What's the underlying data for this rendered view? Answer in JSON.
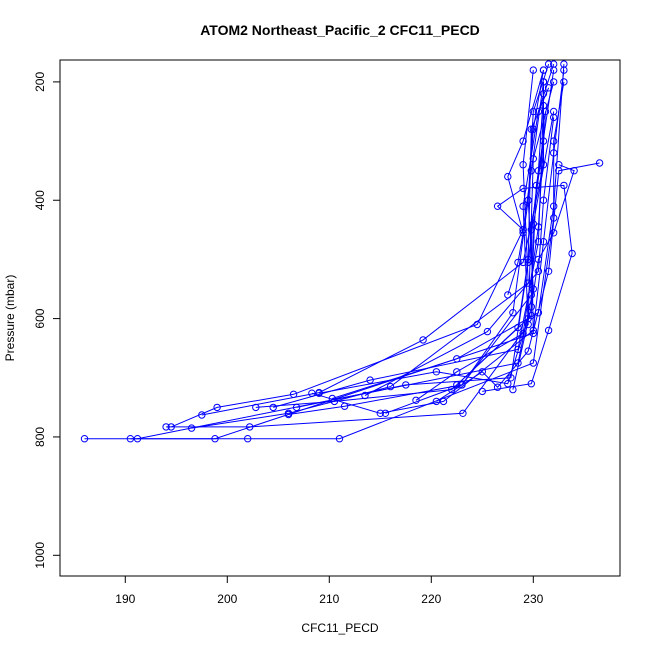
{
  "chart_data": {
    "type": "line",
    "title": "ATOM2 Northeast_Pacific_2 CFC11_PECD",
    "xlabel": "CFC11_PECD",
    "ylabel": "Pressure (mbar)",
    "xlim": [
      183.6,
      238.5
    ],
    "ylim": [
      1035,
      163
    ],
    "y_reversed": true,
    "x_ticks": [
      190,
      200,
      210,
      220,
      230
    ],
    "y_ticks": [
      200,
      400,
      600,
      800,
      1000
    ],
    "grid": false,
    "series_color": "#0000ff",
    "marker": "open-circle",
    "series": [
      {
        "values": [
          [
            186,
            803
          ],
          [
            202,
            803
          ],
          [
            211,
            803
          ],
          [
            230,
            675
          ],
          [
            232,
            430
          ],
          [
            232,
            300
          ],
          [
            233,
            200
          ]
        ]
      },
      {
        "values": [
          [
            190.5,
            803
          ],
          [
            198.8,
            803
          ],
          [
            230,
            625
          ],
          [
            229.8,
            450
          ],
          [
            231,
            300
          ],
          [
            231,
            200
          ]
        ]
      },
      {
        "values": [
          [
            191.2,
            803
          ],
          [
            228.5,
            675
          ],
          [
            230,
            550
          ],
          [
            229.5,
            400
          ],
          [
            230,
            250
          ],
          [
            231.5,
            170
          ]
        ]
      },
      {
        "values": [
          [
            194,
            783
          ],
          [
            202.2,
            783
          ],
          [
            223.1,
            760
          ],
          [
            229.5,
            610
          ],
          [
            229,
            410
          ],
          [
            230.5,
            250
          ],
          [
            232,
            170
          ]
        ]
      },
      {
        "values": [
          [
            194.5,
            783
          ],
          [
            199,
            750
          ],
          [
            206.5,
            728
          ],
          [
            224.5,
            610
          ],
          [
            229,
            450
          ],
          [
            229.8,
            350
          ],
          [
            231,
            200
          ]
        ]
      },
      {
        "values": [
          [
            196.5,
            785
          ],
          [
            206,
            760
          ],
          [
            216,
            715
          ],
          [
            229.5,
            540
          ],
          [
            229,
            340
          ],
          [
            230,
            180
          ]
        ]
      },
      {
        "values": [
          [
            197.5,
            763
          ],
          [
            209,
            725
          ],
          [
            219.2,
            636
          ],
          [
            229,
            505
          ],
          [
            231,
            340
          ],
          [
            231,
            200
          ]
        ]
      },
      {
        "values": [
          [
            202.8,
            750
          ],
          [
            210.5,
            740
          ],
          [
            222,
            720
          ],
          [
            229.8,
            595
          ],
          [
            230,
            440
          ],
          [
            232,
            250
          ]
        ]
      },
      {
        "values": [
          [
            204.5,
            750
          ],
          [
            214,
            704
          ],
          [
            228.5,
            652
          ],
          [
            230.5,
            470
          ],
          [
            231,
            240
          ]
        ]
      },
      {
        "values": [
          [
            206,
            762
          ],
          [
            211.5,
            748
          ],
          [
            223,
            712
          ],
          [
            229.8,
            560
          ],
          [
            230.3,
            375
          ],
          [
            232,
            180
          ]
        ]
      },
      {
        "values": [
          [
            206.8,
            750
          ],
          [
            217.5,
            712
          ],
          [
            227.8,
            700
          ],
          [
            229.5,
            505
          ],
          [
            230.5,
            350
          ],
          [
            231,
            220
          ]
        ]
      },
      {
        "values": [
          [
            208.3,
            726
          ],
          [
            215,
            760
          ],
          [
            221.2,
            740
          ],
          [
            230,
            620
          ],
          [
            231,
            470
          ],
          [
            232,
            320
          ],
          [
            233,
            180
          ]
        ]
      },
      {
        "values": [
          [
            209,
            726
          ],
          [
            220.5,
            690
          ],
          [
            227.5,
            710
          ],
          [
            229.5,
            600
          ],
          [
            230,
            330
          ],
          [
            232,
            200
          ]
        ]
      },
      {
        "values": [
          [
            210.3,
            735
          ],
          [
            222.5,
            668
          ],
          [
            230.5,
            590
          ],
          [
            232,
            410
          ],
          [
            233,
            170
          ]
        ]
      },
      {
        "values": [
          [
            213.5,
            730
          ],
          [
            225.5,
            622
          ],
          [
            230.5,
            520
          ],
          [
            231,
            400
          ],
          [
            232,
            260
          ]
        ]
      },
      {
        "values": [
          [
            215.5,
            760
          ],
          [
            223,
            712
          ],
          [
            228,
            590
          ],
          [
            229.5,
            400
          ],
          [
            230,
            280
          ],
          [
            231,
            180
          ]
        ]
      },
      {
        "values": [
          [
            218.5,
            738
          ],
          [
            222.5,
            690
          ],
          [
            229,
            625
          ],
          [
            230.5,
            445
          ],
          [
            231.2,
            250
          ]
        ]
      },
      {
        "values": [
          [
            220.5,
            740
          ],
          [
            225,
            690
          ],
          [
            226.5,
            716
          ],
          [
            229.5,
            655
          ],
          [
            231.5,
            520
          ],
          [
            232.5,
            350
          ],
          [
            236.5,
            337
          ]
        ]
      },
      {
        "values": [
          [
            222.5,
            712
          ],
          [
            228.5,
            615
          ],
          [
            229.5,
            500
          ],
          [
            229.8,
            280
          ],
          [
            231.5,
            210
          ]
        ]
      },
      {
        "values": [
          [
            225,
            723
          ],
          [
            229.8,
            710
          ],
          [
            231.5,
            620
          ],
          [
            233.8,
            490
          ],
          [
            233,
            375
          ],
          [
            229,
            380
          ],
          [
            226.5,
            410
          ],
          [
            229,
            450
          ]
        ]
      },
      {
        "values": [
          [
            228,
            720
          ],
          [
            229.8,
            580
          ],
          [
            230.5,
            500
          ],
          [
            232,
            455
          ],
          [
            234,
            350
          ],
          [
            232.5,
            340
          ]
        ]
      },
      {
        "values": [
          [
            227.5,
            560
          ],
          [
            228.5,
            505
          ],
          [
            229,
            455
          ],
          [
            227.5,
            360
          ],
          [
            229,
            300
          ],
          [
            231,
            180
          ]
        ]
      }
    ]
  }
}
